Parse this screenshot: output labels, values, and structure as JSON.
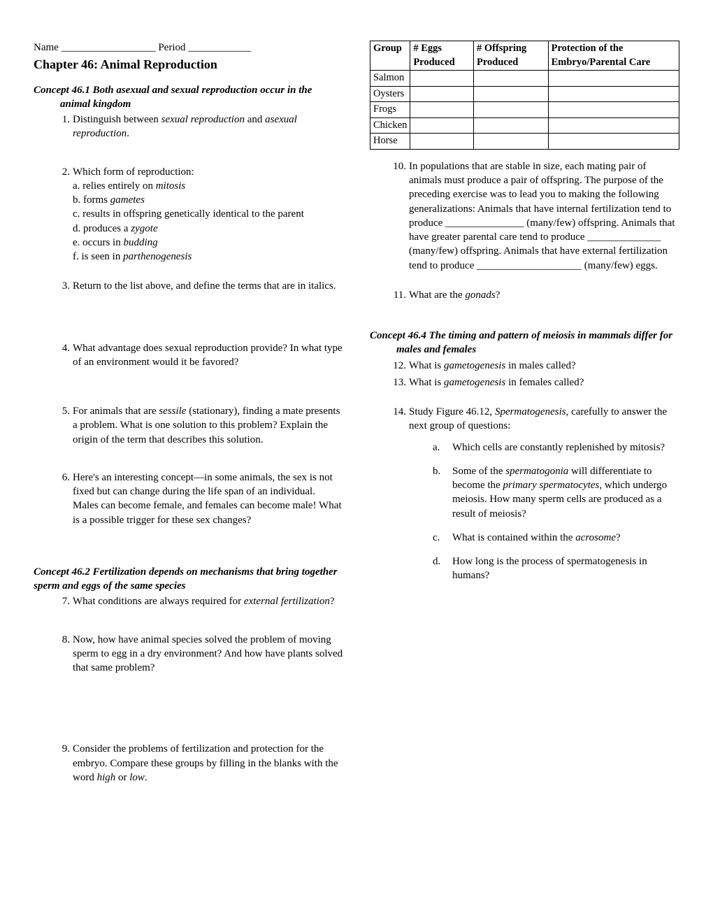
{
  "header": {
    "name_label": "Name __________________",
    "period_label": "Period ____________",
    "chapter_title": "Chapter 46: Animal Reproduction"
  },
  "concepts": {
    "c1": "Concept 46.1 Both asexual and sexual reproduction occur in the animal kingdom",
    "c2": "Concept 46.2 Fertilization depends on mechanisms that bring together sperm and eggs of the same species",
    "c4": "Concept 46.4 The timing and pattern of meiosis in mammals differ for males and females"
  },
  "q1": {
    "pre": "Distinguish between ",
    "i1": "sexual reproduction",
    "mid": " and ",
    "i2": "asexual reproduction",
    "post": "."
  },
  "q2": {
    "stem": "Which form of reproduction:",
    "a_pre": "a. relies entirely on ",
    "a_i": "mitosis",
    "b_pre": "b. forms ",
    "b_i": "gametes",
    "c": "c. results in offspring genetically identical to the parent",
    "d_pre": "d. produces a ",
    "d_i": "zygote",
    "e_pre": "e. occurs in ",
    "e_i": "budding",
    "f_pre": "f. is seen in ",
    "f_i": "parthenogenesis"
  },
  "q3": "Return to the list above, and define the terms that are in italics.",
  "q4": "What advantage does sexual reproduction provide? In what type of an environment would it be favored?",
  "q5": {
    "pre": "For animals that are ",
    "i": "sessile",
    "post": " (stationary), finding a mate presents a problem. What is one solution to this problem? Explain the origin of the term that describes this solution."
  },
  "q6": "Here's an interesting concept—in some animals, the sex is not fixed but can change during the life span of an individual. Males can become female, and females can become male! What is a possible trigger for these sex changes?",
  "q7": {
    "pre": "What conditions are always required for ",
    "i": "external fertilization",
    "post": "?"
  },
  "q8": "Now, how have animal species solved the problem of moving sperm to egg in a dry environment? And how have plants solved that same problem?",
  "q9": {
    "pre": "Consider the problems of fertilization and protection for the embryo. Compare these groups by filling in the blanks with the word ",
    "i1": "high",
    "mid": " or ",
    "i2": "low",
    "post": "."
  },
  "table": {
    "headers": {
      "c1": "Group",
      "c2": "# Eggs Produced",
      "c3": "# Offspring Produced",
      "c4": "Protection of the Embryo/Parental Care"
    },
    "rows": [
      "Salmon",
      "Oysters",
      "Frogs",
      "Chicken",
      "Horse"
    ]
  },
  "q10": "In populations that are stable in size, each mating pair of animals must produce a pair of offspring. The purpose of the preceding exercise was to lead you to making the following generalizations: Animals that have internal fertilization tend to produce _______________ (many/few) offspring. Animals that have greater parental care tend to produce ______________ (many/few) offspring. Animals that have external fertilization tend to produce ____________________ (many/few) eggs.",
  "q11": {
    "pre": "What are the ",
    "i": "gonads",
    "post": "?"
  },
  "q12": {
    "pre": "What is ",
    "i": "gametogenesis",
    "post": " in males called?"
  },
  "q13": {
    "pre": "What is ",
    "i": "gametogenesis",
    "post": " in females called?"
  },
  "q14": {
    "stem_pre": "Study Figure 46.12, ",
    "stem_i": "Spermatogenesis",
    "stem_post": ", carefully to answer the next group of questions:",
    "a": "Which cells are constantly replenished by mitosis?",
    "b_pre": "Some of the ",
    "b_i1": "spermatogonia",
    "b_mid": " will differentiate to become the ",
    "b_i2": "primary spermatocytes",
    "b_post": ", which undergo meiosis. How many sperm cells are produced as a result of meiosis?",
    "c_pre": "What is contained within the ",
    "c_i": "acrosome",
    "c_post": "?",
    "d": "How long is the process of spermatogenesis in humans?"
  },
  "nums": {
    "n1": "1.",
    "n2": "2.",
    "n3": "3.",
    "n4": "4.",
    "n5": "5.",
    "n6": "6.",
    "n7": "7.",
    "n8": "8.",
    "n9": "9.",
    "n10": "10.",
    "n11": "11.",
    "n12": "12.",
    "n13": "13.",
    "n14": "14."
  },
  "lets": {
    "a": "a.",
    "b": "b.",
    "c": "c.",
    "d": "d."
  }
}
